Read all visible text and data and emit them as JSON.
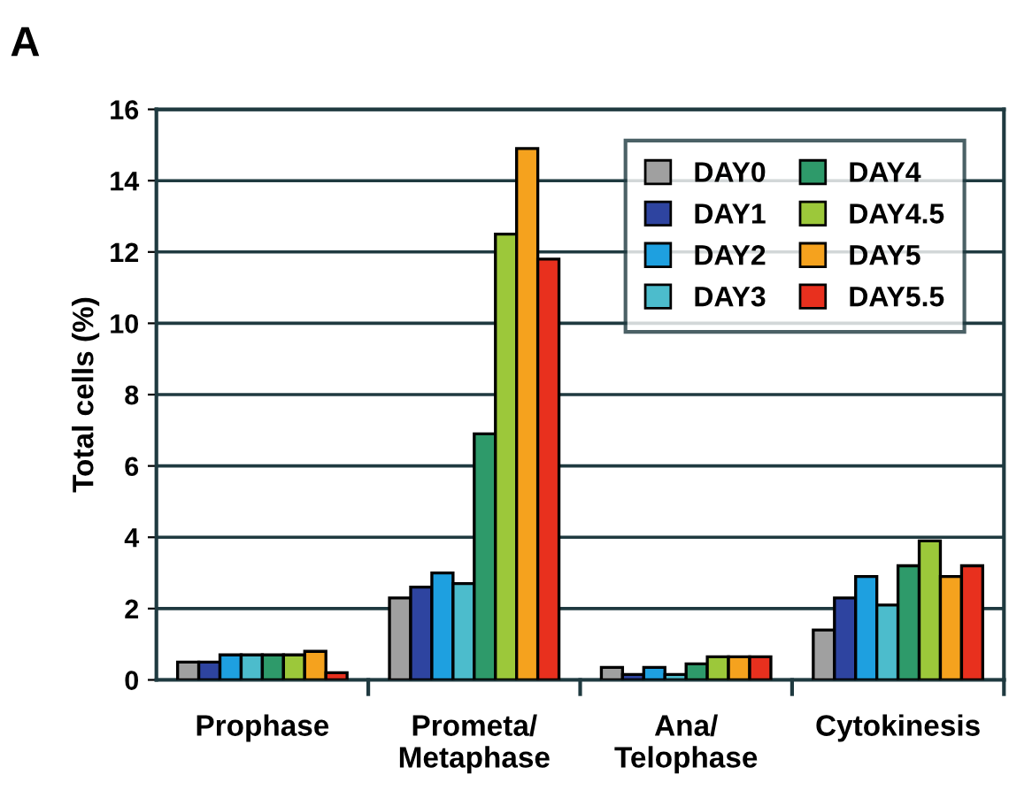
{
  "chart_data": {
    "type": "bar",
    "title": "A",
    "ylabel": "Total cells (%)",
    "categories": [
      "Prophase",
      "Prometa/\nMetaphase",
      "Ana/\nTelophase",
      "Cytokinesis"
    ],
    "series": [
      {
        "name": "DAY0",
        "color": "#a0a0a0",
        "values": [
          0.5,
          2.3,
          0.35,
          1.4
        ]
      },
      {
        "name": "DAY1",
        "color": "#2e44a0",
        "values": [
          0.5,
          2.6,
          0.15,
          2.3
        ]
      },
      {
        "name": "DAY2",
        "color": "#1ea0e0",
        "values": [
          0.7,
          3.0,
          0.35,
          2.9
        ]
      },
      {
        "name": "DAY3",
        "color": "#4cbccc",
        "values": [
          0.7,
          2.7,
          0.15,
          2.1
        ]
      },
      {
        "name": "DAY4",
        "color": "#2e9a6a",
        "values": [
          0.7,
          6.9,
          0.45,
          3.2
        ]
      },
      {
        "name": "DAY4.5",
        "color": "#9cc83a",
        "values": [
          0.7,
          12.5,
          0.65,
          3.9
        ]
      },
      {
        "name": "DAY5",
        "color": "#f5a21e",
        "values": [
          0.8,
          14.9,
          0.65,
          2.9
        ]
      },
      {
        "name": "DAY5.5",
        "color": "#e8301e",
        "values": [
          0.2,
          11.8,
          0.65,
          3.2
        ]
      }
    ],
    "ylim": [
      0,
      16
    ],
    "yticks": [
      0,
      2,
      4,
      6,
      8,
      10,
      12,
      14,
      16
    ],
    "grid": "y",
    "legend": "top right"
  }
}
